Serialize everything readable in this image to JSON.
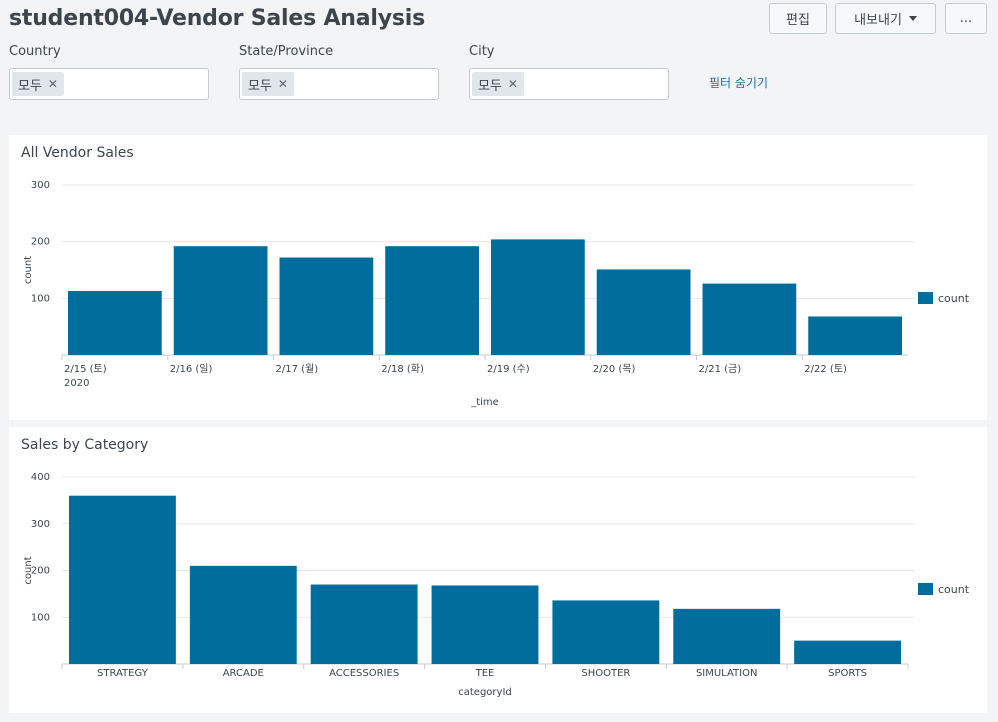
{
  "dashboard": {
    "title": "student004-Vendor Sales Analysis",
    "buttons": {
      "edit": "편집",
      "export": "내보내기",
      "more": "..."
    },
    "hide_filters": "필터 숨기기"
  },
  "filters": [
    {
      "label": "Country",
      "token": "모두"
    },
    {
      "label": "State/Province",
      "token": "모두"
    },
    {
      "label": "City",
      "token": "모두"
    }
  ],
  "colors": {
    "bar": "#006d9c",
    "background": "#f2f4f5",
    "link": "#1a6ea8"
  },
  "panels": [
    {
      "title": "All Vendor Sales",
      "legend": "count",
      "chart_data": {
        "type": "bar",
        "categories": [
          "2/15 (토)",
          "2/16 (일)",
          "2/17 (월)",
          "2/18 (화)",
          "2/19 (수)",
          "2/20 (목)",
          "2/21 (금)",
          "2/22 (토)"
        ],
        "first_category_sublabel": "2020",
        "values": [
          113,
          192,
          172,
          192,
          204,
          151,
          126,
          68
        ],
        "xlabel": "_time",
        "ylabel": "count",
        "ylim": [
          0,
          300
        ],
        "yticks": [
          100,
          200,
          300
        ],
        "grid": true,
        "legend_position": "right"
      }
    },
    {
      "title": "Sales by Category",
      "legend": "count",
      "chart_data": {
        "type": "bar",
        "categories": [
          "STRATEGY",
          "ARCADE",
          "ACCESSORIES",
          "TEE",
          "SHOOTER",
          "SIMULATION",
          "SPORTS"
        ],
        "values": [
          360,
          210,
          170,
          168,
          136,
          118,
          50
        ],
        "xlabel": "categoryId",
        "ylabel": "count",
        "ylim": [
          0,
          400
        ],
        "yticks": [
          100,
          200,
          300,
          400
        ],
        "grid": true,
        "legend_position": "right"
      }
    }
  ]
}
